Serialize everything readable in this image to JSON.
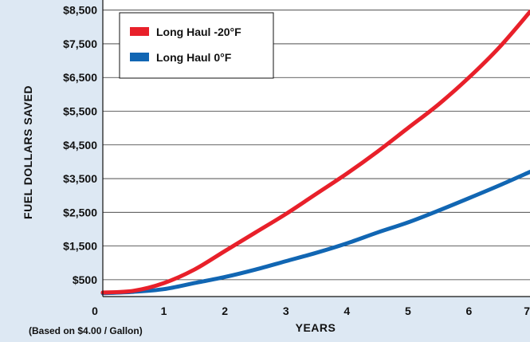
{
  "chart_data": {
    "type": "line",
    "xlabel": "YEARS",
    "ylabel": "FUEL  DOLLARS  SAVED",
    "note": "(Based on $4.00 / Gallon)",
    "xlim": [
      0,
      7
    ],
    "ylim": [
      0,
      8800
    ],
    "x_ticks": [
      "0",
      "1",
      "2",
      "3",
      "4",
      "5",
      "6",
      "7"
    ],
    "y_ticks": [
      "$500",
      "$1,500",
      "$2,500",
      "$3,500",
      "$4,500",
      "$5,500",
      "$6,500",
      "$7,500",
      "$8,500"
    ],
    "y_tick_values": [
      500,
      1500,
      2500,
      3500,
      4500,
      5500,
      6500,
      7500,
      8500
    ],
    "grid": "horizontal",
    "legend_position": "top-left",
    "series": [
      {
        "name": "Long Haul -20°F",
        "color": "#e8202a",
        "x": [
          0,
          0.5,
          1,
          1.5,
          2,
          2.5,
          3,
          3.5,
          4,
          4.5,
          5,
          5.5,
          6,
          6.5,
          7
        ],
        "y": [
          120,
          170,
          400,
          800,
          1350,
          1900,
          2450,
          3050,
          3650,
          4300,
          5000,
          5700,
          6500,
          7400,
          8450
        ]
      },
      {
        "name": "Long Haul 0°F",
        "color": "#1166b3",
        "x": [
          0,
          0.5,
          1,
          1.5,
          2,
          2.5,
          3,
          3.5,
          4,
          4.5,
          5,
          5.5,
          6,
          6.5,
          7
        ],
        "y": [
          100,
          140,
          220,
          400,
          580,
          800,
          1050,
          1300,
          1580,
          1900,
          2200,
          2550,
          2920,
          3300,
          3700
        ]
      }
    ]
  }
}
